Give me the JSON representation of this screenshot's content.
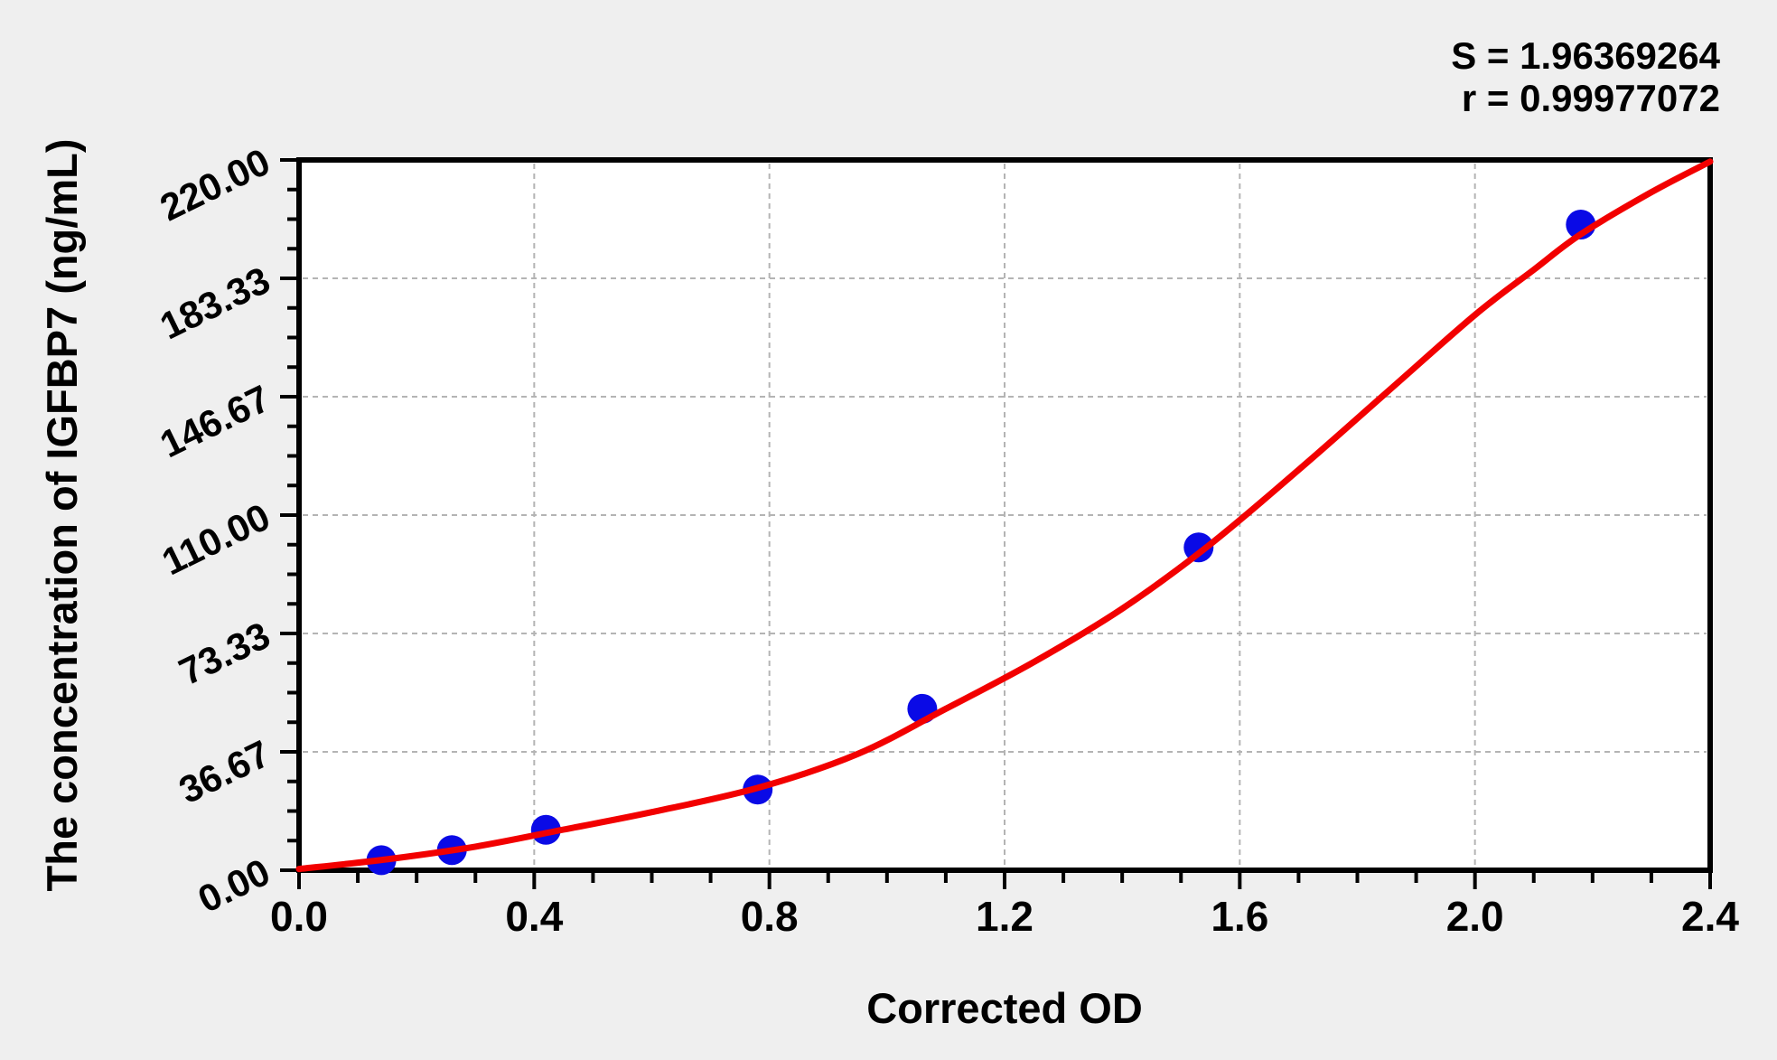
{
  "chart_data": {
    "type": "scatter",
    "title": "",
    "xlabel": "Corrected OD",
    "ylabel": "The concentration of IGFBP7 (ng/mL)",
    "annotations": {
      "s_label": "S = 1.96369264",
      "r_label": "r = 0.99977072"
    },
    "stats": {
      "S": 1.96369264,
      "r": 0.99977072
    },
    "xlim": [
      0,
      2.4
    ],
    "ylim": [
      0,
      220
    ],
    "x_tick_values": [
      0,
      0.4,
      0.8,
      1.2,
      1.6,
      2.0,
      2.4
    ],
    "x_tick_labels": [
      "0.0",
      "0.4",
      "0.8",
      "1.2",
      "1.6",
      "2.0",
      "2.4"
    ],
    "x_minor_step": 0.1,
    "y_tick_values": [
      0,
      36.67,
      73.33,
      110,
      146.67,
      183.33,
      220
    ],
    "y_tick_labels": [
      "0.00",
      "36.67",
      "73.33",
      "110.00",
      "146.67",
      "183.33",
      "220.00"
    ],
    "y_minor_step": 9.16667,
    "grid": {
      "show": true,
      "style": "dashed",
      "at": "major-ticks"
    },
    "legend": {
      "show": false
    },
    "series": [
      {
        "name": "standard-points",
        "type": "scatter",
        "x": [
          0.14,
          0.26,
          0.42,
          0.78,
          1.06,
          1.53,
          2.18
        ],
        "y": [
          3.12,
          6.25,
          12.5,
          25,
          50,
          100,
          200
        ]
      },
      {
        "name": "fit-curve",
        "type": "line",
        "points": [
          [
            0,
            0.4
          ],
          [
            0.15,
            3.4
          ],
          [
            0.3,
            7.3
          ],
          [
            0.45,
            12.6
          ],
          [
            0.6,
            18
          ],
          [
            0.78,
            25.5
          ],
          [
            0.95,
            36
          ],
          [
            1.1,
            50
          ],
          [
            1.25,
            64.5
          ],
          [
            1.4,
            81
          ],
          [
            1.55,
            101
          ],
          [
            1.7,
            124
          ],
          [
            1.85,
            148
          ],
          [
            2.0,
            172
          ],
          [
            2.1,
            186
          ],
          [
            2.18,
            197
          ],
          [
            2.3,
            210
          ],
          [
            2.4,
            219.5
          ]
        ]
      }
    ],
    "colors": {
      "curve": "#f20000",
      "points": "#0a0ae6",
      "grid": "#b4b4b4",
      "axis": "#000000",
      "text": "#000000",
      "plot_bg": "#ffffff",
      "page_bg": "#efefef"
    }
  }
}
